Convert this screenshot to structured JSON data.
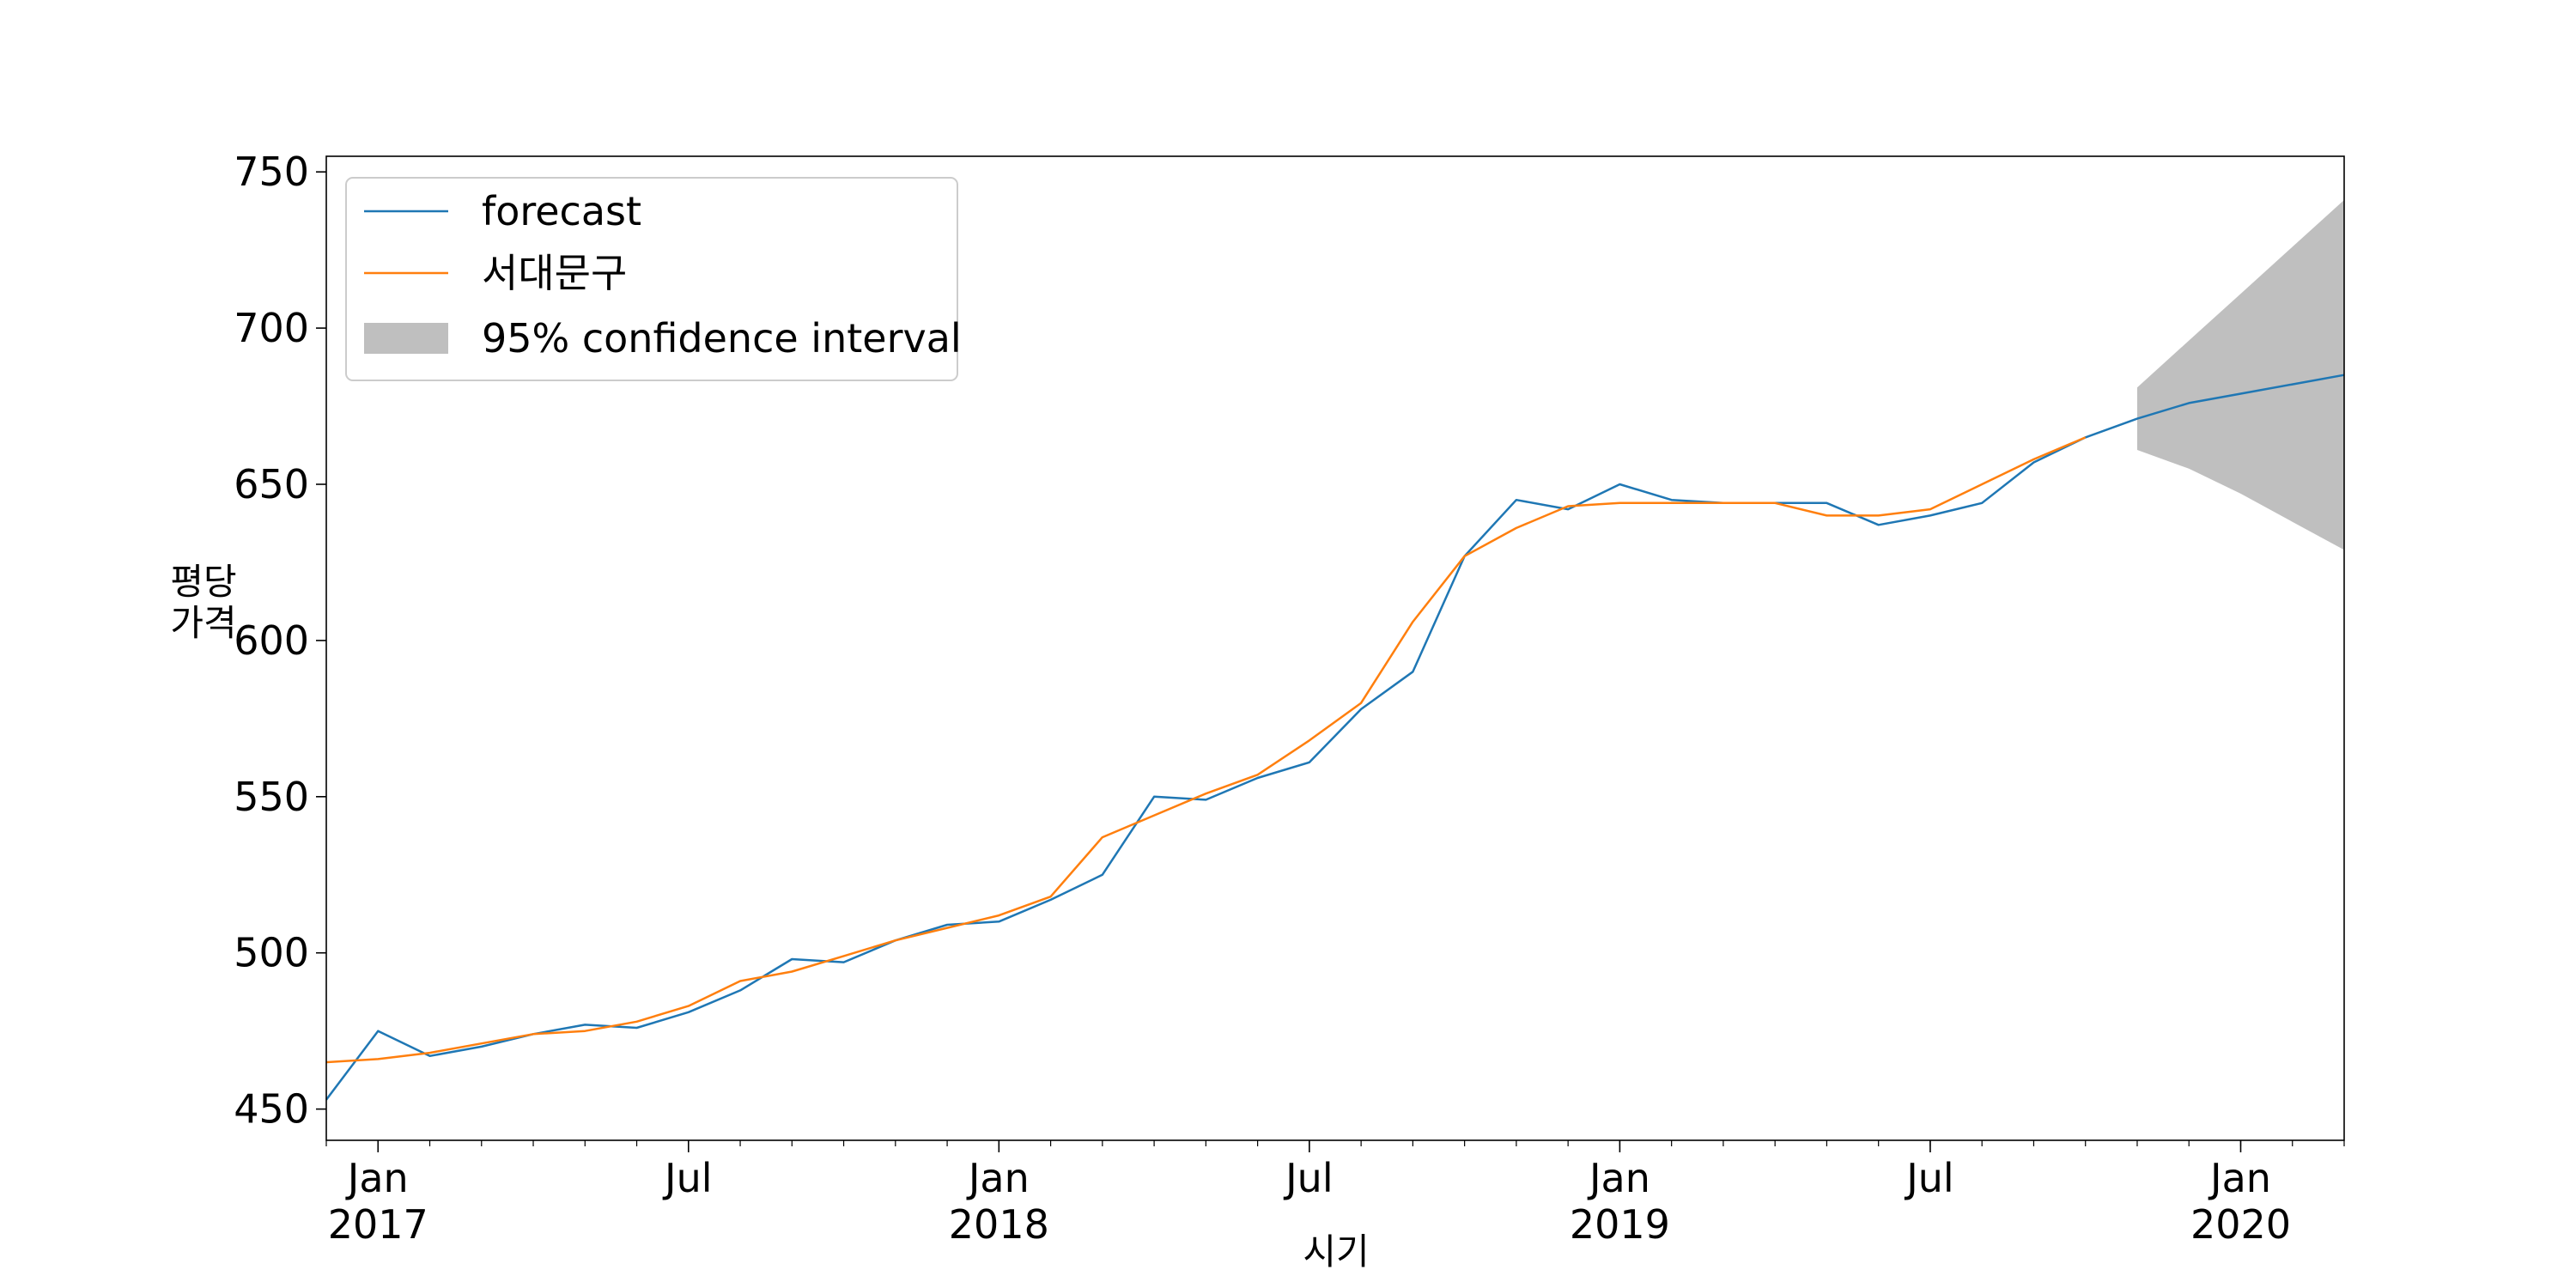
{
  "chart_data": {
    "type": "line",
    "xlabel": "시기",
    "ylabel": [
      "평당",
      "가격"
    ],
    "ylim": [
      440,
      755
    ],
    "xlim": [
      "2016-12",
      "2020-03"
    ],
    "grid": false,
    "legend_position": "top-left",
    "yticks": [
      450,
      500,
      550,
      600,
      650,
      700,
      750
    ],
    "xticks": [
      {
        "date": "2017-01",
        "label": "Jan",
        "year": "2017"
      },
      {
        "date": "2017-07",
        "label": "Jul",
        "year": ""
      },
      {
        "date": "2018-01",
        "label": "Jan",
        "year": "2018"
      },
      {
        "date": "2018-07",
        "label": "Jul",
        "year": ""
      },
      {
        "date": "2019-01",
        "label": "Jan",
        "year": "2019"
      },
      {
        "date": "2019-07",
        "label": "Jul",
        "year": ""
      },
      {
        "date": "2020-01",
        "label": "Jan",
        "year": "2020"
      }
    ],
    "series": [
      {
        "name": "forecast",
        "color": "#1f77b4",
        "x": [
          "2016-12",
          "2017-01",
          "2017-02",
          "2017-03",
          "2017-04",
          "2017-05",
          "2017-06",
          "2017-07",
          "2017-08",
          "2017-09",
          "2017-10",
          "2017-11",
          "2017-12",
          "2018-01",
          "2018-02",
          "2018-03",
          "2018-04",
          "2018-05",
          "2018-06",
          "2018-07",
          "2018-08",
          "2018-09",
          "2018-10",
          "2018-11",
          "2018-12",
          "2019-01",
          "2019-02",
          "2019-03",
          "2019-04",
          "2019-05",
          "2019-06",
          "2019-07",
          "2019-08",
          "2019-09",
          "2019-10",
          "2019-11",
          "2019-12",
          "2020-01",
          "2020-02",
          "2020-03"
        ],
        "values": [
          453,
          475,
          467,
          470,
          474,
          477,
          476,
          481,
          488,
          498,
          497,
          504,
          509,
          510,
          517,
          525,
          550,
          549,
          556,
          561,
          578,
          590,
          627,
          645,
          642,
          650,
          645,
          644,
          644,
          644,
          637,
          640,
          644,
          657,
          665,
          671,
          676,
          679,
          682,
          685
        ]
      },
      {
        "name": "서대문구",
        "color": "#ff7f0e",
        "x": [
          "2016-12",
          "2017-01",
          "2017-02",
          "2017-03",
          "2017-04",
          "2017-05",
          "2017-06",
          "2017-07",
          "2017-08",
          "2017-09",
          "2017-10",
          "2017-11",
          "2017-12",
          "2018-01",
          "2018-02",
          "2018-03",
          "2018-04",
          "2018-05",
          "2018-06",
          "2018-07",
          "2018-08",
          "2018-09",
          "2018-10",
          "2018-11",
          "2018-12",
          "2019-01",
          "2019-02",
          "2019-03",
          "2019-04",
          "2019-05",
          "2019-06",
          "2019-07",
          "2019-08",
          "2019-09",
          "2019-10"
        ],
        "values": [
          465,
          466,
          468,
          471,
          474,
          475,
          478,
          483,
          491,
          494,
          499,
          504,
          508,
          512,
          518,
          537,
          544,
          551,
          557,
          568,
          580,
          606,
          627,
          636,
          643,
          644,
          644,
          644,
          644,
          640,
          640,
          642,
          650,
          658,
          665
        ]
      }
    ],
    "confidence_interval": {
      "name": "95% confidence interval",
      "color": "#bfbfbf",
      "x": [
        "2019-11",
        "2019-12",
        "2020-01",
        "2020-02",
        "2020-03"
      ],
      "lower": [
        661,
        655,
        647,
        638,
        629
      ],
      "upper": [
        681,
        696,
        711,
        726,
        741
      ]
    }
  }
}
